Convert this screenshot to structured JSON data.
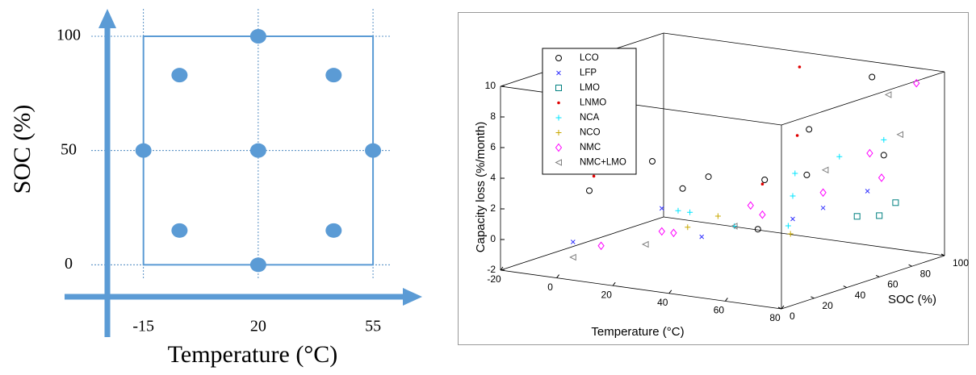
{
  "chart_data": [
    {
      "type": "scatter",
      "xlabel": "Temperature (°C)",
      "ylabel": "SOC (%)",
      "color": "#5b9bd5",
      "xlim": [
        -26,
        70
      ],
      "ylim": [
        -14,
        112
      ],
      "xticks": [
        -15,
        20,
        55
      ],
      "yticks": [
        0,
        50,
        100
      ],
      "grid": true,
      "x": [
        -15,
        20,
        20,
        20,
        55,
        -4,
        43,
        -4,
        43
      ],
      "y": [
        50,
        0,
        50,
        100,
        50,
        83,
        83,
        15,
        15
      ]
    },
    {
      "type": "scatter3d",
      "xlabel": "Temperature (°C)",
      "ylabel": "SOC (%)",
      "zlabel": "Capacity loss (%/month)",
      "xlim": [
        -20,
        80
      ],
      "ylim": [
        0,
        100
      ],
      "zlim": [
        -2,
        10
      ],
      "xticks": [
        -20,
        0,
        20,
        40,
        60,
        80
      ],
      "yticks": [
        0,
        20,
        40,
        60,
        80,
        100
      ],
      "zticks": [
        -2,
        0,
        2,
        4,
        6,
        8,
        10
      ],
      "legend": "upper left",
      "series": [
        {
          "name": "LCO",
          "color": "#000000",
          "marker": "circle",
          "x": [
            60,
            55,
            25,
            45,
            60,
            0,
            5,
            10,
            60,
            70
          ],
          "y": [
            90,
            60,
            50,
            50,
            50,
            20,
            50,
            60,
            20,
            80
          ],
          "z": [
            9.5,
            7,
            3.5,
            3.8,
            4.5,
            3,
            4,
            2,
            2,
            5
          ]
        },
        {
          "name": "LFP",
          "color": "#3333ff",
          "marker": "x",
          "x": [
            0,
            40,
            55,
            60,
            20,
            70
          ],
          "y": [
            10,
            20,
            50,
            60,
            30,
            70
          ],
          "z": [
            0,
            1,
            1.5,
            2,
            2,
            3
          ]
        },
        {
          "name": "LMO",
          "color": "#008080",
          "marker": "square",
          "x": [
            80,
            80,
            75
          ],
          "y": [
            60,
            70,
            55
          ],
          "z": [
            2,
            2.5,
            2
          ]
        },
        {
          "name": "LNMO",
          "color": "#e00000",
          "marker": "dot",
          "x": [
            40,
            -10,
            50,
            45
          ],
          "y": [
            80,
            40,
            40,
            70
          ],
          "z": [
            10,
            3,
            4,
            6
          ]
        },
        {
          "name": "NCA",
          "color": "#00e5ff",
          "marker": "plus",
          "x": [
            30,
            50,
            60,
            70,
            40,
            20,
            65,
            55
          ],
          "y": [
            30,
            60,
            70,
            80,
            40,
            40,
            30,
            50
          ],
          "z": [
            2,
            4,
            5,
            6,
            1,
            1.5,
            2,
            3
          ]
        },
        {
          "name": "NCO",
          "color": "#c8a800",
          "marker": "plus",
          "x": [
            40,
            60,
            35
          ],
          "y": [
            30,
            40,
            20
          ],
          "z": [
            2,
            1,
            1.5
          ]
        },
        {
          "name": "NMC",
          "color": "#ff00ff",
          "marker": "diamond",
          "x": [
            70,
            10,
            30,
            50,
            60,
            75,
            40,
            20,
            65
          ],
          "y": [
            100,
            10,
            20,
            40,
            60,
            70,
            50,
            30,
            80
          ],
          "z": [
            9,
            0,
            1,
            2,
            3,
            4,
            2,
            0.5,
            5
          ]
        },
        {
          "name": "NMC+LMO",
          "color": "#808080",
          "marker": "triangle",
          "x": [
            60,
            0,
            20,
            55,
            70,
            40
          ],
          "y": [
            100,
            10,
            20,
            70,
            90,
            40
          ],
          "z": [
            8,
            -1,
            0,
            4,
            6,
            1
          ]
        }
      ]
    }
  ]
}
